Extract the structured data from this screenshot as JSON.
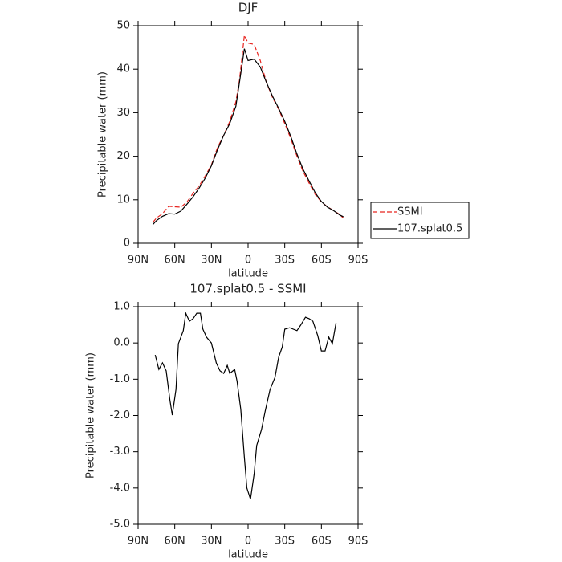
{
  "chart_data": [
    {
      "type": "line",
      "title": "DJF",
      "xlabel": "latitude",
      "ylabel": "Precipitable water (mm)",
      "x": [
        78,
        75,
        70,
        65,
        60,
        55,
        50,
        45,
        40,
        35,
        30,
        25,
        20,
        15,
        10,
        7,
        3,
        0,
        -5,
        -10,
        -15,
        -20,
        -25,
        -30,
        -35,
        -40,
        -45,
        -50,
        -55,
        -60,
        -65,
        -70,
        -75,
        -78
      ],
      "series": [
        {
          "name": "SSMI",
          "color": "#e8241f",
          "dashed": true,
          "values": [
            4.8,
            5.8,
            6.8,
            8.5,
            8.4,
            8.3,
            9.5,
            11.5,
            13.2,
            15.5,
            18,
            22,
            24.8,
            28,
            32.5,
            37.5,
            47.8,
            46,
            45.7,
            42,
            37,
            33.5,
            30.8,
            27.5,
            24,
            20,
            16.5,
            13.8,
            11.2,
            9.5,
            8.4,
            7.5,
            6.6,
            5.8
          ]
        },
        {
          "name": "107.splat0.5",
          "color": "#000000",
          "dashed": false,
          "values": [
            4.3,
            5.2,
            6.2,
            6.8,
            6.7,
            7.4,
            9.0,
            10.7,
            12.7,
            15.0,
            17.8,
            21.5,
            24.8,
            27.5,
            31.5,
            37,
            44.7,
            42,
            42.3,
            40.5,
            37,
            33.8,
            31,
            28,
            24.5,
            20.5,
            17,
            14.3,
            11.6,
            9.6,
            8.3,
            7.5,
            6.5,
            6.1
          ]
        }
      ],
      "xlim": [
        90,
        -90
      ],
      "xticks": [
        {
          "value": 90,
          "label": "90N"
        },
        {
          "value": 60,
          "label": "60N"
        },
        {
          "value": 30,
          "label": "30N"
        },
        0,
        {
          "value": -30,
          "label": "30S"
        },
        {
          "value": -60,
          "label": "60S"
        },
        {
          "value": -90,
          "label": "90S"
        }
      ],
      "ylim": [
        0,
        50
      ],
      "yticks": [
        0,
        10,
        20,
        30,
        40,
        50
      ],
      "legend": "right"
    },
    {
      "type": "line",
      "title": "107.splat0.5 - SSMI",
      "xlabel": "latitude",
      "ylabel": "Precipitable water (mm)",
      "x": [
        76,
        73,
        70,
        67,
        64,
        62,
        59,
        57,
        53,
        51,
        48,
        45,
        42,
        39,
        37,
        34,
        30,
        26,
        23,
        20,
        17,
        15,
        11,
        9,
        6,
        3,
        1,
        -2,
        -5,
        -7,
        -11,
        -14,
        -18,
        -22,
        -25,
        -28,
        -30,
        -34,
        -37,
        -40,
        -43,
        -47,
        -50,
        -53,
        -57,
        -60,
        -63,
        -66,
        -69,
        -72
      ],
      "series": [
        {
          "name": "107.splat0.5 - SSMI",
          "color": "#000000",
          "dashed": false,
          "values": [
            -0.33,
            -0.73,
            -0.55,
            -0.77,
            -1.57,
            -1.99,
            -1.28,
            -0.02,
            0.34,
            0.82,
            0.6,
            0.67,
            0.82,
            0.82,
            0.38,
            0.16,
            0,
            -0.55,
            -0.77,
            -0.84,
            -0.62,
            -0.84,
            -0.73,
            -1.06,
            -1.83,
            -3.16,
            -4.0,
            -4.31,
            -3.6,
            -2.83,
            -2.39,
            -1.88,
            -1.28,
            -0.95,
            -0.39,
            -0.11,
            0.38,
            0.42,
            0.38,
            0.34,
            0.49,
            0.71,
            0.67,
            0.6,
            0.2,
            -0.22,
            -0.22,
            0.16,
            -0.02,
            0.56
          ]
        }
      ],
      "xlim": [
        90,
        -90
      ],
      "xticks": [
        {
          "value": 90,
          "label": "90N"
        },
        {
          "value": 60,
          "label": "60N"
        },
        {
          "value": 30,
          "label": "30N"
        },
        0,
        {
          "value": -30,
          "label": "30S"
        },
        {
          "value": -60,
          "label": "60S"
        },
        {
          "value": -90,
          "label": "90S"
        }
      ],
      "ylim": [
        -5,
        1
      ],
      "yticks": [
        {
          "value": -5,
          "label": "-5.0"
        },
        {
          "value": -4,
          "label": "-4.0"
        },
        {
          "value": -3,
          "label": "-3.0"
        },
        {
          "value": -2,
          "label": "-2.0"
        },
        {
          "value": -1,
          "label": "-1.0"
        },
        {
          "value": 0,
          "label": "0.0"
        },
        {
          "value": 1,
          "label": "1.0"
        }
      ]
    }
  ]
}
